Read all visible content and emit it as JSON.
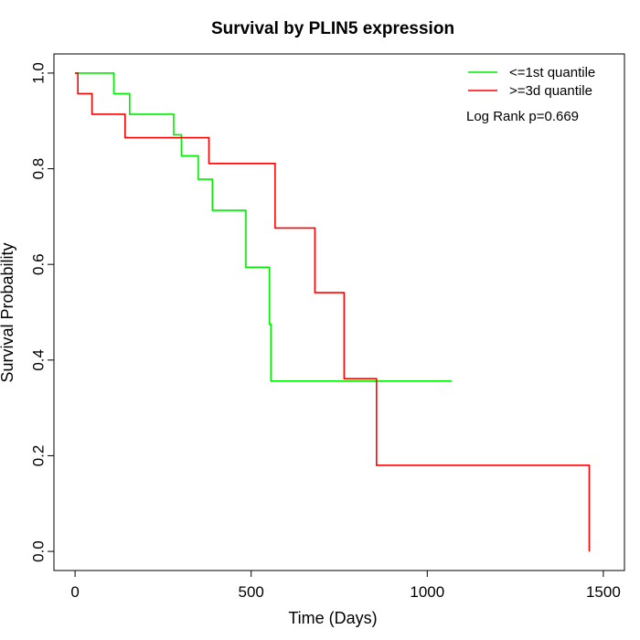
{
  "chart_data": {
    "type": "line",
    "title": "Survival by PLIN5 expression",
    "xlabel": "Time (Days)",
    "ylabel": "Survival Probability",
    "xlim": [
      -60,
      1560
    ],
    "ylim": [
      -0.04,
      1.04
    ],
    "x_ticks": [
      0,
      500,
      1000,
      1500
    ],
    "x_tick_labels": [
      "0",
      "500",
      "1000",
      "1500"
    ],
    "y_ticks": [
      0.0,
      0.2,
      0.4,
      0.6,
      0.8,
      1.0
    ],
    "y_tick_labels": [
      "0.0",
      "0.2",
      "0.4",
      "0.6",
      "0.8",
      "1.0"
    ],
    "grid": false,
    "legend_position": "top-right",
    "series": [
      {
        "name": "<=1st quantile",
        "color": "#00ee00",
        "steps": [
          [
            0,
            1.0
          ],
          [
            110,
            0.957
          ],
          [
            155,
            0.914
          ],
          [
            280,
            0.871
          ],
          [
            302,
            0.827
          ],
          [
            350,
            0.778
          ],
          [
            390,
            0.713
          ],
          [
            485,
            0.594
          ],
          [
            552,
            0.475
          ],
          [
            556,
            0.356
          ],
          [
            1070,
            0.356
          ]
        ]
      },
      {
        "name": ">=3d quantile",
        "color": "#ff0000",
        "steps": [
          [
            0,
            1.0
          ],
          [
            8,
            0.957
          ],
          [
            48,
            0.914
          ],
          [
            142,
            0.865
          ],
          [
            380,
            0.811
          ],
          [
            568,
            0.676
          ],
          [
            681,
            0.541
          ],
          [
            764,
            0.361
          ],
          [
            856,
            0.18
          ],
          [
            1460,
            0.0
          ]
        ]
      }
    ],
    "annotation": "Log Rank p=0.669"
  }
}
